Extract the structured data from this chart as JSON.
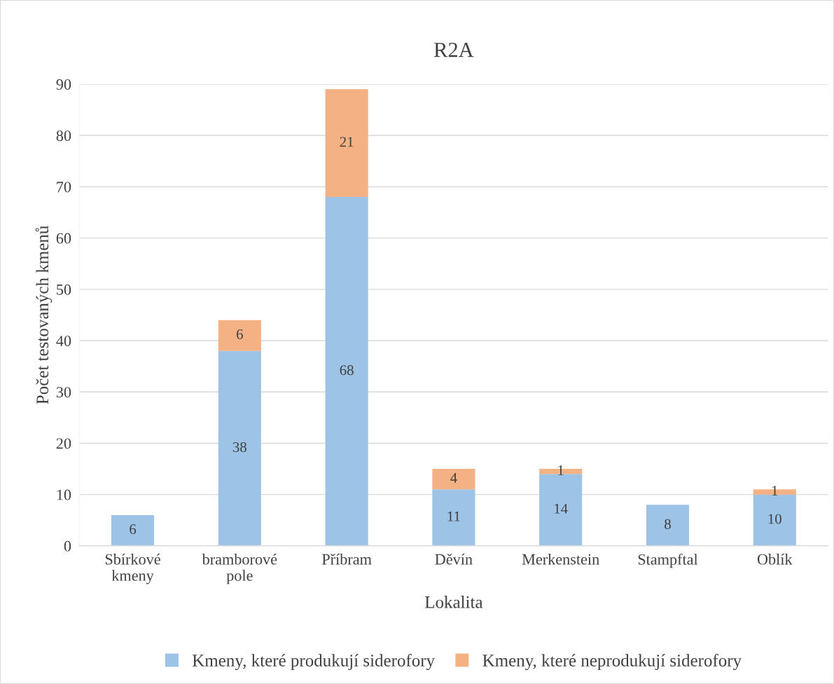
{
  "chart_data": {
    "type": "bar",
    "stacked": true,
    "title": "R2A",
    "xlabel": "Lokalita",
    "ylabel": "Počet testovaných kmenů",
    "categories": [
      "Sbírkové\nkmeny",
      "bramborové\npole",
      "Příbram",
      "Děvín",
      "Merkenstein",
      "Stampftal",
      "Oblík"
    ],
    "series": [
      {
        "name": "Kmeny, které produkují siderofory",
        "color": "#9dc3e6",
        "values": [
          6,
          38,
          68,
          11,
          14,
          8,
          10
        ]
      },
      {
        "name": "Kmeny, které neprodukují siderofory",
        "color": "#f4b183",
        "values": [
          null,
          6,
          21,
          4,
          1,
          null,
          1
        ]
      }
    ],
    "ylim": [
      0,
      90
    ],
    "yticks": [
      0,
      10,
      20,
      30,
      40,
      50,
      60,
      70,
      80,
      90
    ],
    "grid": "y",
    "legend": "bottom",
    "data_labels": true
  }
}
